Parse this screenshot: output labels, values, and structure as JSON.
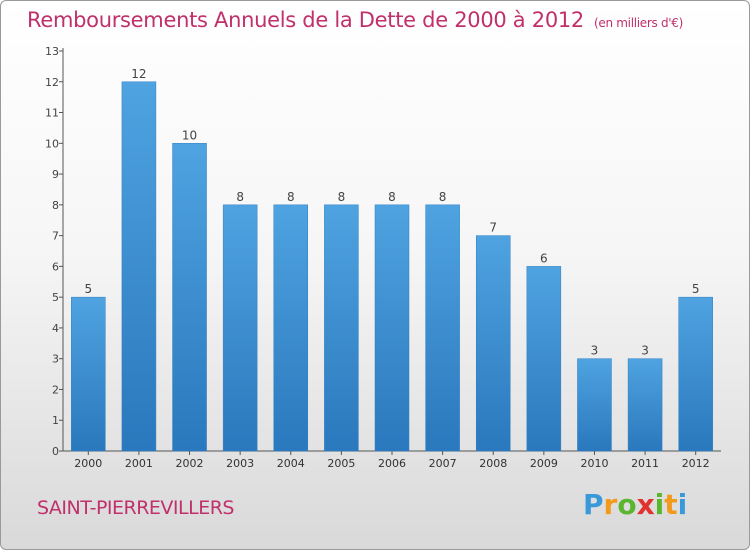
{
  "title": "Remboursements Annuels de la Dette de 2000 à 2012",
  "unit": "(en milliers d'€)",
  "town": "SAINT-PIERREVILLERS",
  "brand": {
    "letters": [
      "P",
      "r",
      "o",
      "x",
      "i",
      "t",
      "i"
    ],
    "colors": [
      "#3a9ad9",
      "#f29a1c",
      "#5cb531",
      "#e2322f",
      "#5cb531",
      "#f29a1c",
      "#3a9ad9"
    ]
  },
  "colors": {
    "bar": "#4fa3e0",
    "bar_dark": "#2a78bd",
    "title": "#c0306a"
  },
  "chart_data": {
    "type": "bar",
    "title": "Remboursements Annuels de la Dette de 2000 à 2012",
    "ylabel": "(en milliers d'€)",
    "xlabel": "",
    "categories": [
      "2000",
      "2001",
      "2002",
      "2003",
      "2004",
      "2005",
      "2006",
      "2007",
      "2008",
      "2009",
      "2010",
      "2011",
      "2012"
    ],
    "values": [
      5,
      12,
      10,
      8,
      8,
      8,
      8,
      8,
      7,
      6,
      3,
      3,
      5
    ],
    "ylim": [
      0,
      13
    ],
    "yticks": [
      "0",
      "1",
      "2",
      "3",
      "4",
      "5",
      "6",
      "7",
      "8",
      "9",
      "10",
      "11",
      "12",
      "13"
    ],
    "grid": false,
    "legend": "none"
  }
}
